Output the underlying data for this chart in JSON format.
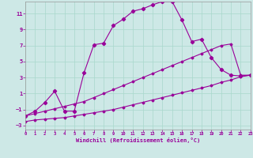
{
  "xlabel": "Windchill (Refroidissement éolien,°C)",
  "background_color": "#cde8e6",
  "line_color": "#990099",
  "xlim": [
    0,
    23
  ],
  "ylim": [
    -3.5,
    12.5
  ],
  "xticks": [
    0,
    1,
    2,
    3,
    4,
    5,
    6,
    7,
    8,
    9,
    10,
    11,
    12,
    13,
    14,
    15,
    16,
    17,
    18,
    19,
    20,
    21,
    22,
    23
  ],
  "yticks": [
    -3,
    -1,
    1,
    3,
    5,
    7,
    9,
    11
  ],
  "grid_color": "#a8d8cc",
  "wavy_x": [
    0,
    1,
    2,
    3,
    4,
    5,
    6,
    7,
    8,
    9,
    10,
    11,
    12,
    13,
    14,
    15,
    16,
    17,
    18,
    19,
    20,
    21,
    22,
    23
  ],
  "wavy_y": [
    -1.8,
    -1.2,
    -0.1,
    1.3,
    -1.2,
    -1.2,
    3.6,
    7.1,
    7.3,
    9.5,
    10.3,
    11.3,
    11.6,
    12.1,
    12.5,
    12.5,
    10.2,
    7.5,
    7.8,
    5.5,
    4.0,
    3.3,
    3.2,
    3.3
  ],
  "mid_x": [
    0,
    1,
    2,
    3,
    4,
    5,
    6,
    7,
    8,
    9,
    10,
    11,
    12,
    13,
    14,
    15,
    16,
    17,
    18,
    19,
    20,
    21,
    22,
    23
  ],
  "mid_y": [
    -1.8,
    -1.5,
    -1.2,
    -0.9,
    -0.6,
    -0.3,
    0.0,
    0.5,
    1.0,
    1.5,
    2.0,
    2.5,
    3.0,
    3.5,
    4.0,
    4.5,
    5.0,
    5.5,
    6.0,
    6.5,
    7.0,
    7.2,
    3.3,
    3.3
  ],
  "low_x": [
    0,
    1,
    2,
    3,
    4,
    5,
    6,
    7,
    8,
    9,
    10,
    11,
    12,
    13,
    14,
    15,
    16,
    17,
    18,
    19,
    20,
    21,
    22,
    23
  ],
  "low_y": [
    -2.5,
    -2.3,
    -2.2,
    -2.1,
    -2.0,
    -1.8,
    -1.6,
    -1.4,
    -1.2,
    -1.0,
    -0.7,
    -0.4,
    -0.1,
    0.2,
    0.5,
    0.8,
    1.1,
    1.4,
    1.7,
    2.0,
    2.4,
    2.7,
    3.1,
    3.3
  ]
}
